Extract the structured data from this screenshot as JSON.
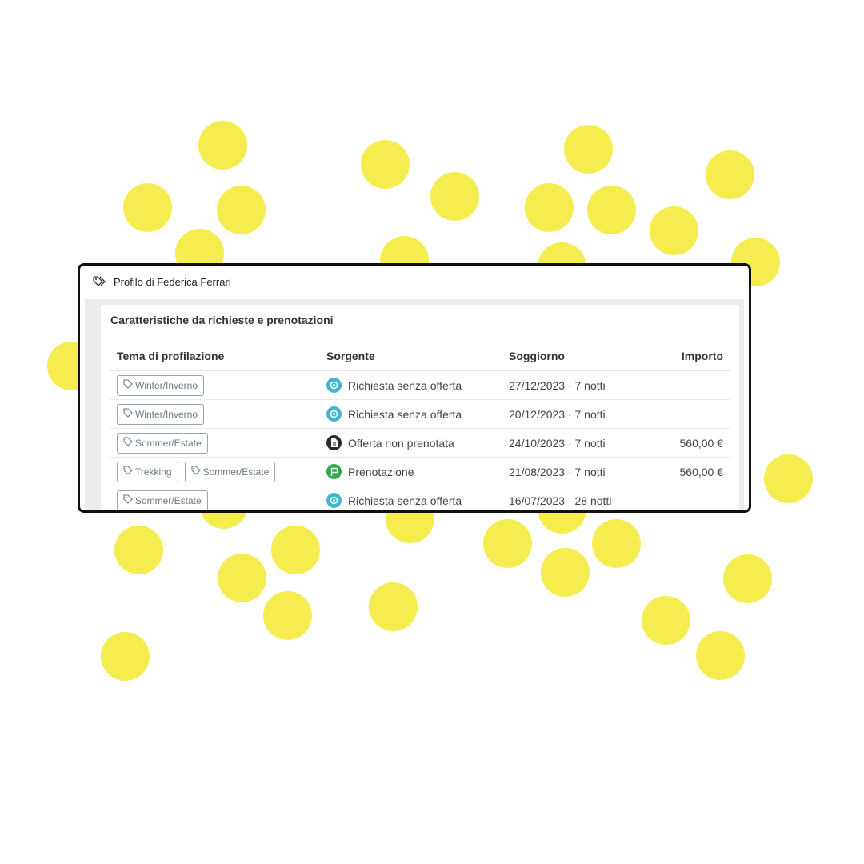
{
  "header": {
    "title": "Profilo di Federica Ferrari",
    "icon": "tags-icon"
  },
  "panel": {
    "title": "Caratteristiche da richieste e prenotazioni",
    "columns": [
      "Tema di profilazione",
      "Sorgente",
      "Soggiorno",
      "Importo"
    ],
    "rows": [
      {
        "tags": [
          "Winter/Inverno"
        ],
        "source": "Richiesta senza offerta",
        "source_icon": "target-icon",
        "source_color": "#3fb8d4",
        "stay": "27/12/2023 · 7 notti",
        "amount": ""
      },
      {
        "tags": [
          "Winter/Inverno"
        ],
        "source": "Richiesta senza offerta",
        "source_icon": "target-icon",
        "source_color": "#3fb8d4",
        "stay": "20/12/2023 · 7 notti",
        "amount": ""
      },
      {
        "tags": [
          "Sommer/Estate"
        ],
        "source": "Offerta non prenotata",
        "source_icon": "document-icon",
        "source_color": "#2b2b2b",
        "stay": "24/10/2023 · 7 notti",
        "amount": "560,00 €"
      },
      {
        "tags": [
          "Trekking",
          "Sommer/Estate"
        ],
        "source": "Prenotazione",
        "source_icon": "flag-icon",
        "source_color": "#2eaa4a",
        "stay": "21/08/2023 · 7 notti",
        "amount": "560,00 €"
      },
      {
        "tags": [
          "Sommer/Estate"
        ],
        "source": "Richiesta senza offerta",
        "source_icon": "target-icon",
        "source_color": "#3fb8d4",
        "stay": "16/07/2023 · 28 notti",
        "amount": ""
      }
    ]
  },
  "colors": {
    "dots": "#f5ec50",
    "border": "#111111"
  }
}
